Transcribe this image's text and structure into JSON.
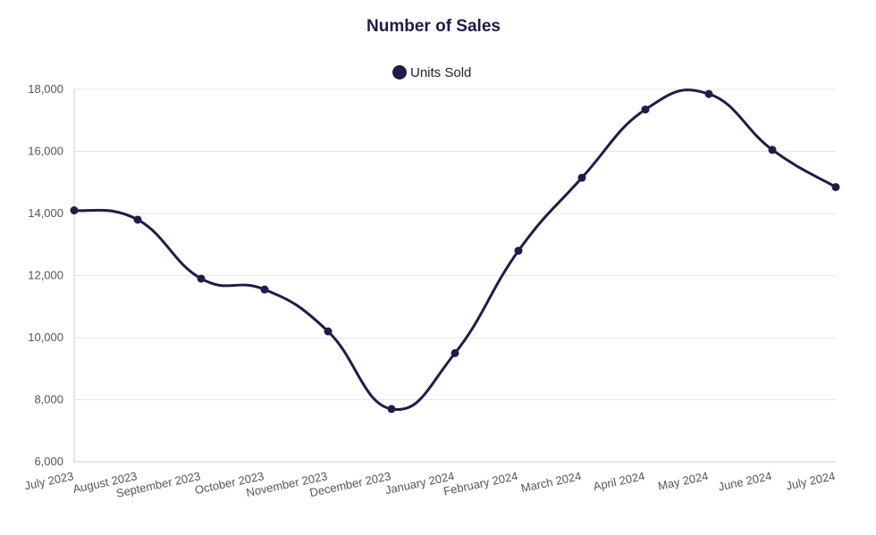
{
  "chart_data": {
    "type": "line",
    "title": "Number of Sales",
    "xlabel": "",
    "ylabel": "",
    "categories": [
      "July 2023",
      "August 2023",
      "September 2023",
      "October 2023",
      "November 2023",
      "December 2023",
      "January 2024",
      "February 2024",
      "March 2024",
      "April 2024",
      "May 2024",
      "June 2024",
      "July 2024"
    ],
    "series": [
      {
        "name": "Units Sold",
        "values": [
          14100,
          13800,
          11900,
          11550,
          10200,
          7700,
          9500,
          12800,
          15150,
          17350,
          17850,
          16050,
          14850
        ],
        "color": "#201c45"
      }
    ],
    "ylim": [
      6000,
      18000
    ],
    "yticks": [
      6000,
      8000,
      10000,
      12000,
      14000,
      16000,
      18000
    ],
    "ytick_labels": [
      "6,000",
      "8,000",
      "10,000",
      "12,000",
      "14,000",
      "16,000",
      "18,000"
    ],
    "grid": true,
    "legend_position": "top-center",
    "smooth": true
  }
}
